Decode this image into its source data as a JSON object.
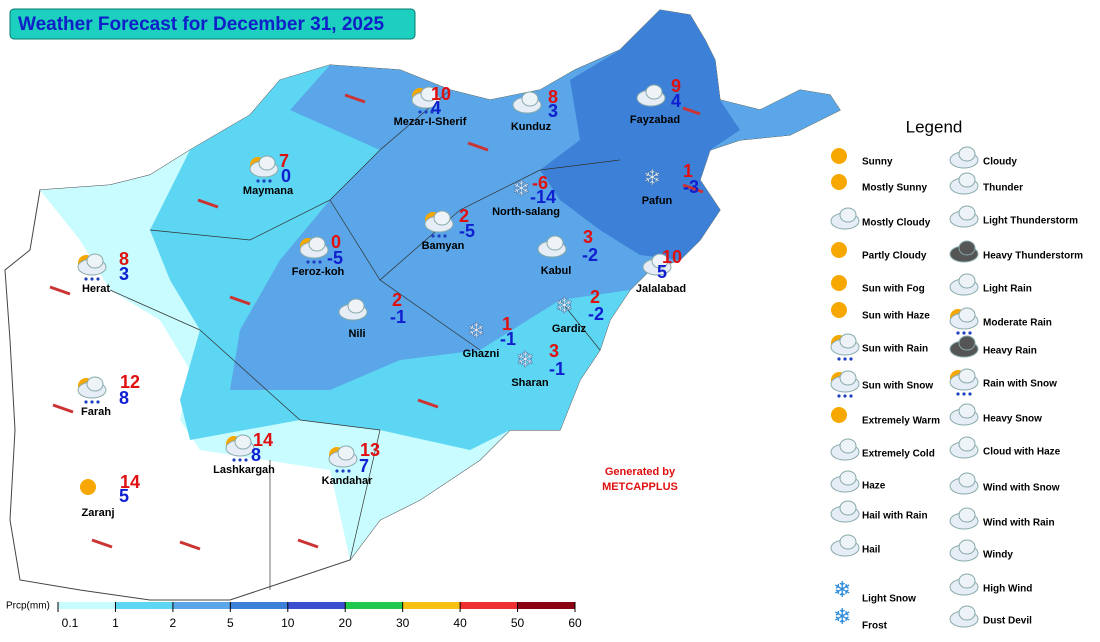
{
  "header": {
    "title": "Weather Forecast for December 31, 2025"
  },
  "cities": [
    {
      "name": "Mezar-I-Sherif",
      "max": 10,
      "min": 4
    },
    {
      "name": "Kunduz",
      "max": 8,
      "min": 3
    },
    {
      "name": "Fayzabad",
      "max": 9,
      "min": 4
    },
    {
      "name": "Maymana",
      "max": 7,
      "min": 0
    },
    {
      "name": "North-salang",
      "max": -6,
      "min": -14
    },
    {
      "name": "Pafun",
      "max": 1,
      "min": -3
    },
    {
      "name": "Feroz-koh",
      "max": 0,
      "min": -5
    },
    {
      "name": "Bamyan",
      "max": 2,
      "min": -5
    },
    {
      "name": "Kabul",
      "max": 3,
      "min": -2
    },
    {
      "name": "Jalalabad",
      "max": 10,
      "min": 5
    },
    {
      "name": "Herat",
      "max": 8,
      "min": 3
    },
    {
      "name": "Nili",
      "max": 2,
      "min": -1
    },
    {
      "name": "Ghazni",
      "max": 1,
      "min": -1
    },
    {
      "name": "Gardiz",
      "max": 2,
      "min": -2
    },
    {
      "name": "Sharan",
      "max": 3,
      "min": -1
    },
    {
      "name": "Farah",
      "max": 12,
      "min": 8
    },
    {
      "name": "Lashkargah",
      "max": 14,
      "min": 8
    },
    {
      "name": "Kandahar",
      "max": 13,
      "min": 7
    },
    {
      "name": "Zaranj",
      "max": 14,
      "min": 5
    }
  ],
  "credit": {
    "line1": "Generated by",
    "line2": "METCAPPLUS"
  },
  "legend": {
    "title": "Legend",
    "column1": [
      "Sunny",
      "Mostly Sunny",
      "Mostly Cloudy",
      "Partly Cloudy",
      "Sun with Fog",
      "Sun with Haze",
      "Sun with Rain",
      "Sun with Snow",
      "Extremely Warm",
      "Extremely Cold",
      "Haze",
      "Hail with Rain",
      "Hail",
      "Light Snow",
      "Frost"
    ],
    "column2": [
      "Cloudy",
      "Thunder",
      "Light Thunderstorm",
      "Heavy Thunderstorm",
      "Light Rain",
      "Moderate Rain",
      "Heavy Rain",
      "Rain with Snow",
      "Heavy Snow",
      "Cloud with Haze",
      "Wind with Snow",
      "Wind with Rain",
      "Windy",
      "High Wind",
      "Dust Devil"
    ]
  },
  "scale": {
    "title": "Prcp(mm)",
    "labels": [
      0.1,
      1,
      2,
      5,
      10,
      20,
      30,
      40,
      50,
      60
    ],
    "colors": [
      "#c8fcff",
      "#5cd6f2",
      "#5aa6e8",
      "#3c80d8",
      "#3c4ed0",
      "#22c84e",
      "#f8c012",
      "#ee3030",
      "#8c0014"
    ]
  }
}
